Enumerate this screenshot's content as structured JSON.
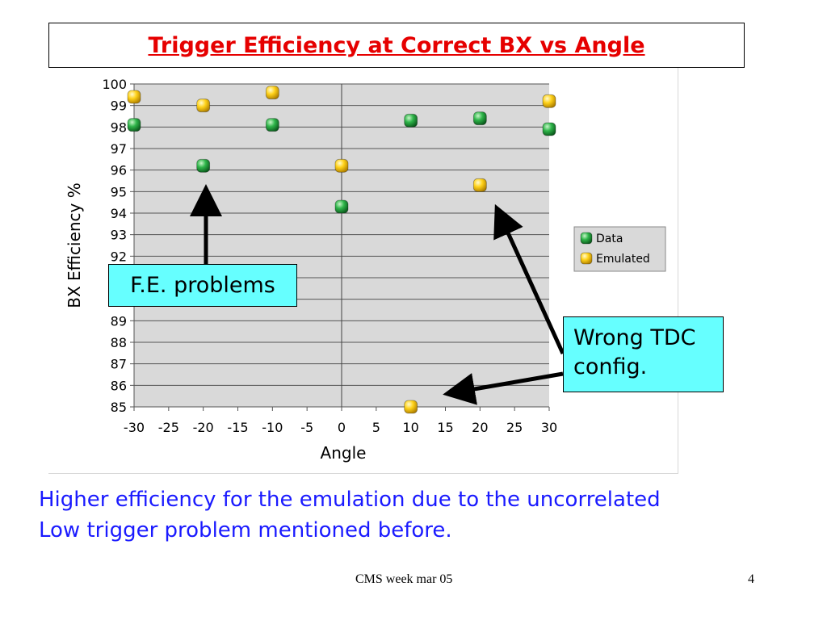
{
  "slide": {
    "title": "Trigger Efficiency at Correct BX vs Angle",
    "conclusion_lines": [
      "Higher efficiency for the emulation due to the uncorrelated",
      "Low trigger problem mentioned before."
    ],
    "footer": {
      "label": "CMS week mar 05",
      "page_number": "4"
    }
  },
  "callouts": {
    "fe": "F.E. problems",
    "tdc_lines": [
      "Wrong TDC",
      "config."
    ]
  },
  "colors": {
    "title": "#e60000",
    "conclusion_text": "#1a1aff",
    "callout_fill": "#66ffff",
    "plot_background": "#d9d9d9",
    "data_marker": "#1f9a3a",
    "emulated_marker": "#f2c200"
  },
  "chart_data": {
    "type": "scatter",
    "title": "",
    "xlabel": "Angle",
    "ylabel": "BX Efficiency %",
    "xlim": [
      -30,
      30
    ],
    "ylim": [
      85,
      100
    ],
    "x_ticks": [
      -30,
      -25,
      -20,
      -15,
      -10,
      -5,
      0,
      5,
      10,
      15,
      20,
      25,
      30
    ],
    "y_ticks": [
      85,
      86,
      87,
      88,
      89,
      90,
      91,
      92,
      93,
      94,
      95,
      96,
      97,
      98,
      99,
      100
    ],
    "grid": true,
    "legend_position": "right",
    "series": [
      {
        "name": "Data",
        "color": "#1f9a3a",
        "points": [
          {
            "x": -30,
            "y": 98.1
          },
          {
            "x": -20,
            "y": 96.2
          },
          {
            "x": -10,
            "y": 98.1
          },
          {
            "x": 0,
            "y": 94.3
          },
          {
            "x": 10,
            "y": 98.3
          },
          {
            "x": 20,
            "y": 98.4
          },
          {
            "x": 30,
            "y": 97.9
          }
        ]
      },
      {
        "name": "Emulated",
        "color": "#f2c200",
        "points": [
          {
            "x": -30,
            "y": 99.4
          },
          {
            "x": -20,
            "y": 99.0
          },
          {
            "x": -10,
            "y": 99.6
          },
          {
            "x": 0,
            "y": 96.2
          },
          {
            "x": 10,
            "y": 85.0
          },
          {
            "x": 20,
            "y": 95.3
          },
          {
            "x": 30,
            "y": 99.2
          }
        ]
      }
    ]
  }
}
